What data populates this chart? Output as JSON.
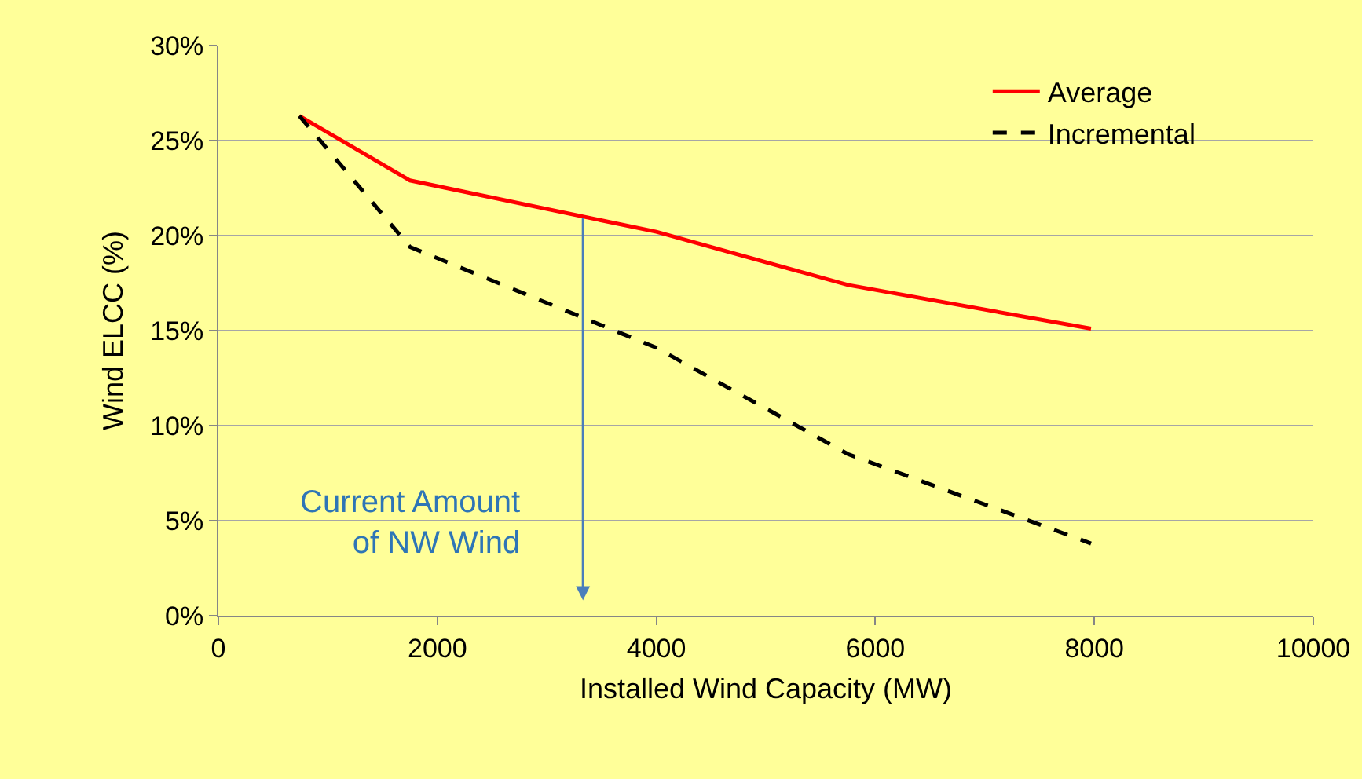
{
  "chart_data": {
    "type": "line",
    "xlabel": "Installed Wind Capacity (MW)",
    "ylabel": "Wind ELCC (%)",
    "x": [
      740,
      1750,
      4000,
      5750,
      7970
    ],
    "series": [
      {
        "name": "Average",
        "color": "#ff0000",
        "line_style": "solid",
        "values": [
          26.3,
          22.9,
          20.2,
          17.4,
          15.1
        ]
      },
      {
        "name": "Incremental",
        "color": "#000000",
        "line_style": "dashed",
        "values": [
          26.3,
          19.4,
          14.1,
          8.5,
          3.8
        ]
      }
    ],
    "xlim": [
      0,
      10000
    ],
    "xticks": [
      0,
      2000,
      4000,
      6000,
      8000,
      10000
    ],
    "ylim": [
      0,
      30
    ],
    "yticks": [
      {
        "value": 0,
        "label": "0%"
      },
      {
        "value": 5,
        "label": "5%"
      },
      {
        "value": 10,
        "label": "10%"
      },
      {
        "value": 15,
        "label": "15%"
      },
      {
        "value": 20,
        "label": "20%"
      },
      {
        "value": 25,
        "label": "25%"
      },
      {
        "value": 30,
        "label": "30%"
      }
    ],
    "annotations": [
      "Current Amount\nof NW Wind"
    ],
    "grid": "y",
    "legend": "top right",
    "marker": "none"
  }
}
